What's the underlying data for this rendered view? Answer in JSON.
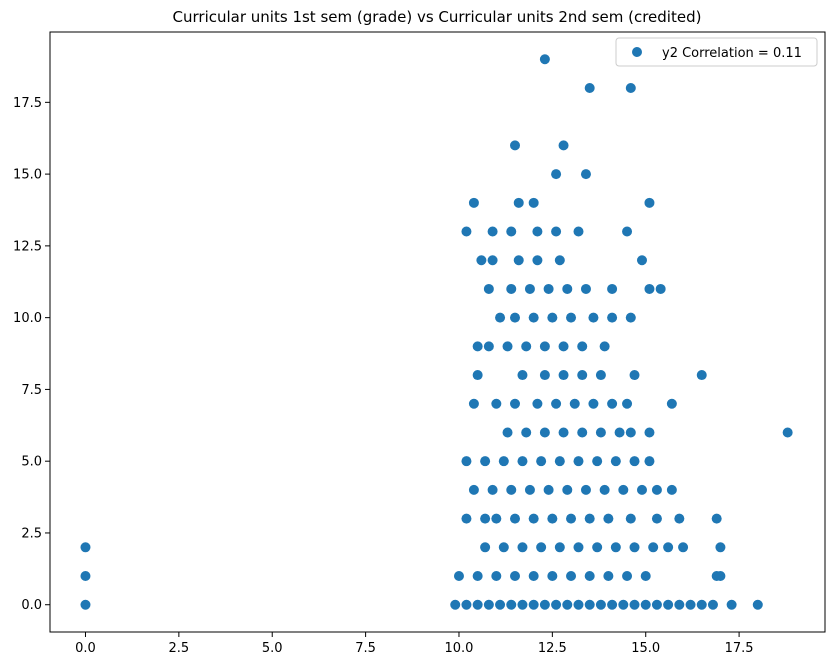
{
  "chart_data": {
    "type": "scatter",
    "title": "Curricular units 1st sem (grade) vs Curricular units 2nd sem (credited)",
    "xlabel": "",
    "ylabel": "",
    "xlim": [
      -0.95,
      19.8
    ],
    "ylim": [
      -0.95,
      19.95
    ],
    "xticks": [
      0.0,
      2.5,
      5.0,
      7.5,
      10.0,
      12.5,
      15.0,
      17.5
    ],
    "yticks": [
      0.0,
      2.5,
      5.0,
      7.5,
      10.0,
      12.5,
      15.0,
      17.5
    ],
    "xtick_labels": [
      "0.0",
      "2.5",
      "5.0",
      "7.5",
      "10.0",
      "12.5",
      "15.0",
      "17.5"
    ],
    "ytick_labels": [
      "0.0",
      "2.5",
      "5.0",
      "7.5",
      "10.0",
      "12.5",
      "15.0",
      "17.5"
    ],
    "grid": false,
    "legend_position": "top-right",
    "series": [
      {
        "name": "y2 Correlation = 0.11",
        "color": "#1f77b4",
        "points": [
          [
            0,
            0
          ],
          [
            0,
            1
          ],
          [
            0,
            2
          ],
          [
            18.0,
            0
          ],
          [
            17.3,
            0
          ],
          [
            16.8,
            0
          ],
          [
            16.5,
            0
          ],
          [
            16.2,
            0
          ],
          [
            15.9,
            0
          ],
          [
            15.6,
            0
          ],
          [
            15.3,
            0
          ],
          [
            15.0,
            0
          ],
          [
            14.7,
            0
          ],
          [
            14.4,
            0
          ],
          [
            14.1,
            0
          ],
          [
            13.8,
            0
          ],
          [
            13.5,
            0
          ],
          [
            13.2,
            0
          ],
          [
            12.9,
            0
          ],
          [
            12.6,
            0
          ],
          [
            12.3,
            0
          ],
          [
            12.0,
            0
          ],
          [
            11.7,
            0
          ],
          [
            11.4,
            0
          ],
          [
            11.1,
            0
          ],
          [
            10.8,
            0
          ],
          [
            10.5,
            0
          ],
          [
            10.2,
            0
          ],
          [
            9.9,
            0
          ],
          [
            10.0,
            1
          ],
          [
            10.5,
            1
          ],
          [
            11.0,
            1
          ],
          [
            11.5,
            1
          ],
          [
            12.0,
            1
          ],
          [
            12.5,
            1
          ],
          [
            13.0,
            1
          ],
          [
            13.5,
            1
          ],
          [
            14.0,
            1
          ],
          [
            14.5,
            1
          ],
          [
            15.0,
            1
          ],
          [
            16.9,
            1
          ],
          [
            17.0,
            1
          ],
          [
            10.7,
            2
          ],
          [
            11.2,
            2
          ],
          [
            11.7,
            2
          ],
          [
            12.2,
            2
          ],
          [
            12.7,
            2
          ],
          [
            13.2,
            2
          ],
          [
            13.7,
            2
          ],
          [
            14.2,
            2
          ],
          [
            14.7,
            2
          ],
          [
            15.2,
            2
          ],
          [
            15.6,
            2
          ],
          [
            16.0,
            2
          ],
          [
            17.0,
            2
          ],
          [
            10.2,
            3
          ],
          [
            10.7,
            3
          ],
          [
            11.0,
            3
          ],
          [
            11.5,
            3
          ],
          [
            12.0,
            3
          ],
          [
            12.5,
            3
          ],
          [
            13.0,
            3
          ],
          [
            13.5,
            3
          ],
          [
            14.0,
            3
          ],
          [
            14.6,
            3
          ],
          [
            15.3,
            3
          ],
          [
            15.9,
            3
          ],
          [
            16.9,
            3
          ],
          [
            10.4,
            4
          ],
          [
            10.9,
            4
          ],
          [
            11.4,
            4
          ],
          [
            11.9,
            4
          ],
          [
            12.4,
            4
          ],
          [
            12.9,
            4
          ],
          [
            13.4,
            4
          ],
          [
            13.9,
            4
          ],
          [
            14.4,
            4
          ],
          [
            14.9,
            4
          ],
          [
            15.3,
            4
          ],
          [
            15.7,
            4
          ],
          [
            10.2,
            5
          ],
          [
            10.7,
            5
          ],
          [
            11.2,
            5
          ],
          [
            11.7,
            5
          ],
          [
            12.2,
            5
          ],
          [
            12.7,
            5
          ],
          [
            13.2,
            5
          ],
          [
            13.7,
            5
          ],
          [
            14.2,
            5
          ],
          [
            14.7,
            5
          ],
          [
            15.1,
            5
          ],
          [
            11.3,
            6
          ],
          [
            11.8,
            6
          ],
          [
            12.3,
            6
          ],
          [
            12.8,
            6
          ],
          [
            13.3,
            6
          ],
          [
            13.8,
            6
          ],
          [
            14.3,
            6
          ],
          [
            14.6,
            6
          ],
          [
            15.1,
            6
          ],
          [
            18.8,
            6
          ],
          [
            10.4,
            7
          ],
          [
            11.0,
            7
          ],
          [
            11.5,
            7
          ],
          [
            12.1,
            7
          ],
          [
            12.6,
            7
          ],
          [
            13.1,
            7
          ],
          [
            13.6,
            7
          ],
          [
            14.1,
            7
          ],
          [
            14.5,
            7
          ],
          [
            15.7,
            7
          ],
          [
            10.5,
            8
          ],
          [
            11.7,
            8
          ],
          [
            12.3,
            8
          ],
          [
            12.8,
            8
          ],
          [
            13.3,
            8
          ],
          [
            13.8,
            8
          ],
          [
            14.7,
            8
          ],
          [
            16.5,
            8
          ],
          [
            10.5,
            9
          ],
          [
            10.8,
            9
          ],
          [
            11.3,
            9
          ],
          [
            11.8,
            9
          ],
          [
            12.3,
            9
          ],
          [
            12.8,
            9
          ],
          [
            13.3,
            9
          ],
          [
            13.9,
            9
          ],
          [
            11.1,
            10
          ],
          [
            11.5,
            10
          ],
          [
            12.0,
            10
          ],
          [
            12.5,
            10
          ],
          [
            13.0,
            10
          ],
          [
            13.6,
            10
          ],
          [
            14.1,
            10
          ],
          [
            14.6,
            10
          ],
          [
            10.8,
            11
          ],
          [
            11.4,
            11
          ],
          [
            11.9,
            11
          ],
          [
            12.4,
            11
          ],
          [
            12.9,
            11
          ],
          [
            13.4,
            11
          ],
          [
            14.1,
            11
          ],
          [
            15.1,
            11
          ],
          [
            15.4,
            11
          ],
          [
            10.6,
            12
          ],
          [
            10.9,
            12
          ],
          [
            11.6,
            12
          ],
          [
            12.1,
            12
          ],
          [
            12.7,
            12
          ],
          [
            14.9,
            12
          ],
          [
            10.2,
            13
          ],
          [
            10.9,
            13
          ],
          [
            11.4,
            13
          ],
          [
            12.1,
            13
          ],
          [
            12.6,
            13
          ],
          [
            13.2,
            13
          ],
          [
            14.5,
            13
          ],
          [
            10.4,
            14
          ],
          [
            11.6,
            14
          ],
          [
            12.0,
            14
          ],
          [
            15.1,
            14
          ],
          [
            12.6,
            15
          ],
          [
            13.4,
            15
          ],
          [
            11.5,
            16
          ],
          [
            12.8,
            16
          ],
          [
            13.5,
            18
          ],
          [
            14.6,
            18
          ],
          [
            12.3,
            19
          ]
        ]
      }
    ]
  }
}
